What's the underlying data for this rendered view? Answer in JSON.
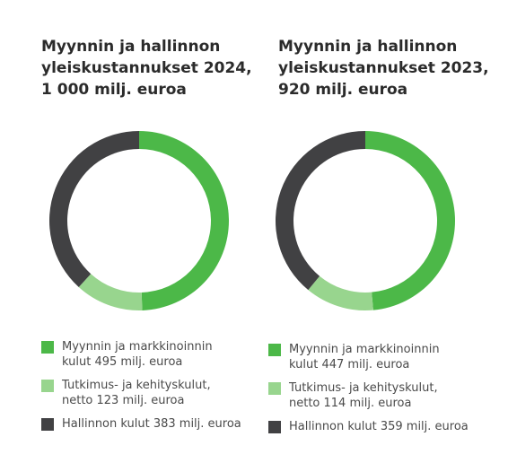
{
  "colors": {
    "marketing": "#4cb848",
    "rnd": "#98d58e",
    "admin": "#414143"
  },
  "chart_data": [
    {
      "type": "pie",
      "title": [
        "Myynnin ja hallinnon",
        "yleiskustannukset 2024,",
        "1 000 milj. euroa"
      ],
      "categories": [
        "Myynnin ja markkinoinnin kulut",
        "Tutkimus- ja kehityskulut, netto",
        "Hallinnon kulut"
      ],
      "values": [
        495,
        123,
        383
      ],
      "legend": [
        {
          "lines": [
            "Myynnin ja markkinoinnin",
            "kulut 495 milj. euroa"
          ],
          "color": "#4cb848"
        },
        {
          "lines": [
            "Tutkimus- ja kehityskulut,",
            "netto 123 milj. euroa"
          ],
          "color": "#98d58e"
        },
        {
          "lines": [
            "Hallinnon kulut 383 milj. euroa"
          ],
          "color": "#414143"
        }
      ]
    },
    {
      "type": "pie",
      "title": [
        "Myynnin ja hallinnon",
        "yleiskustannukset 2023,",
        "920 milj. euroa"
      ],
      "categories": [
        "Myynnin ja markkinoinnin kulut",
        "Tutkimus- ja kehityskulut, netto",
        "Hallinnon kulut"
      ],
      "values": [
        447,
        114,
        359
      ],
      "legend": [
        {
          "lines": [
            "Myynnin ja markkinoinnin",
            "kulut 447 milj. euroa"
          ],
          "color": "#4cb848"
        },
        {
          "lines": [
            "Tutkimus- ja kehityskulut,",
            "netto 114 milj. euroa"
          ],
          "color": "#98d58e"
        },
        {
          "lines": [
            "Hallinnon kulut 359 milj. euroa"
          ],
          "color": "#414143"
        }
      ]
    }
  ]
}
